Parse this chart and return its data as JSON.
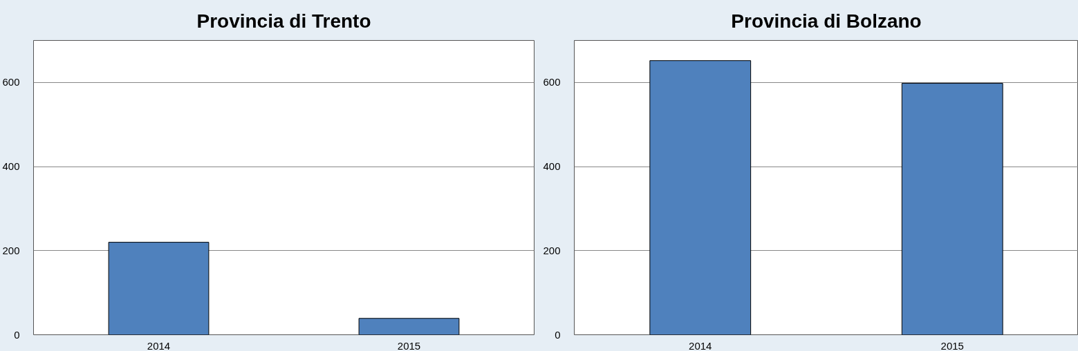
{
  "chart_data": [
    {
      "type": "bar",
      "title": "Provincia di Trento",
      "categories": [
        "2014",
        "2015"
      ],
      "values": [
        220,
        39
      ],
      "color": "#4f81bd",
      "ylim": [
        0,
        700
      ],
      "yticks": [
        0,
        200,
        400,
        600
      ],
      "grid": "y"
    },
    {
      "type": "bar",
      "title": "Provincia di Bolzano",
      "categories": [
        "2014",
        "2015"
      ],
      "values": [
        652,
        598
      ],
      "color": "#4f81bd",
      "ylim": [
        0,
        700
      ],
      "yticks": [
        0,
        200,
        400,
        600
      ],
      "grid": "y"
    }
  ]
}
